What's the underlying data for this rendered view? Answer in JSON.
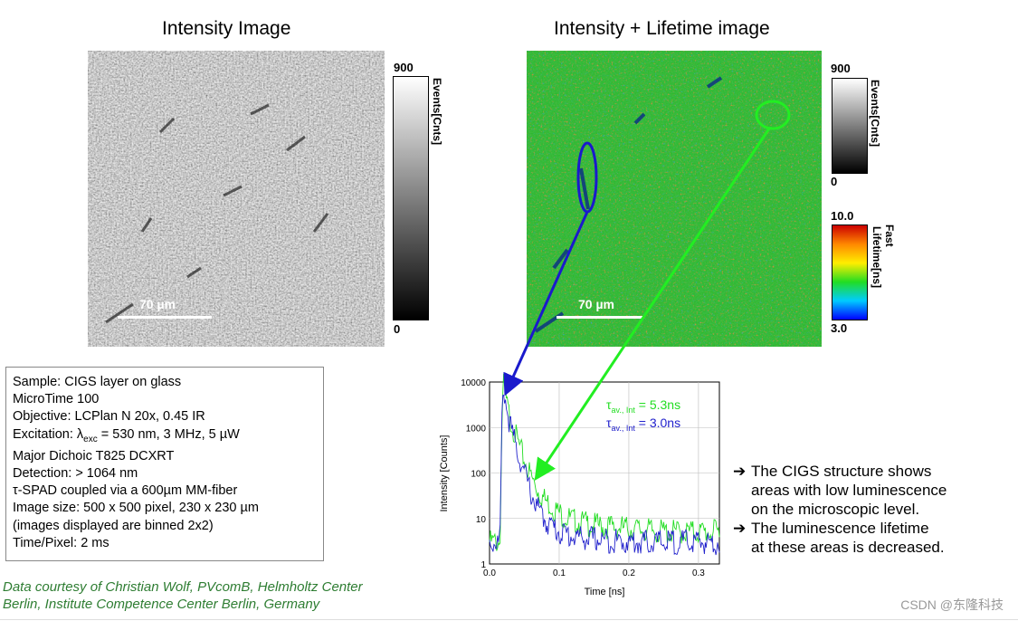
{
  "headings": {
    "left": "Intensity Image",
    "right": "Intensity + Lifetime image"
  },
  "scale_bar_label": "70 µm",
  "colorbar_intensity": {
    "max": "900",
    "min": "0",
    "title": "Events[Cnts]"
  },
  "colorbar_lifetime": {
    "max": "10.0",
    "min": "3.0",
    "title_fast": "Fast",
    "title": "Lifetime[ns]"
  },
  "info_box": {
    "sample": "Sample: CIGS layer on glass",
    "instrument": "MicroTime 100",
    "objective": "Objective: LCPlan N 20x, 0.45 IR",
    "excitation_prefix": "Excitation: λ",
    "excitation_sub": "exc",
    "excitation_suffix": " = 530 nm, 3 MHz, 5 µW",
    "dichroic": "Major Dichoic T825 DCXRT",
    "detection": "Detection: > 1064 nm",
    "spad": "τ-SPAD coupled via a 600µm MM-fiber",
    "image_size": "Image size: 500 x 500 pixel, 230 x 230 µm",
    "binning": "(images displayed are binned 2x2)",
    "time_pixel": "Time/Pixel: 2 ms"
  },
  "credit": {
    "line1": "Data courtesy of Christian Wolf, PVcomB, Helmholtz Center",
    "line2": "Berlin, Institute Competence Center Berlin, Germany"
  },
  "conclusions": {
    "arrow": "➔",
    "item1_line1": "The CIGS structure shows",
    "item1_line2": "areas with low luminescence",
    "item1_line3": "on the microscopic level.",
    "item2_line1": "The luminescence lifetime",
    "item2_line2": "at these areas is decreased."
  },
  "chart_data": {
    "type": "line",
    "xlabel": "Time [ns]",
    "ylabel": "Intensity [Counts]",
    "xlim": [
      0,
      0.33
    ],
    "ylim": [
      1,
      10000
    ],
    "y_scale": "log",
    "x_ticks": [
      "0.0",
      "0.1",
      "0.2",
      "0.3"
    ],
    "x_tick_values": [
      0,
      0.1,
      0.2,
      0.3
    ],
    "y_ticks": [
      "1",
      "10",
      "100",
      "1000",
      "10000"
    ],
    "y_tick_values": [
      1,
      10,
      100,
      1000,
      10000
    ],
    "series": [
      {
        "color": "#22dd22",
        "x": [
          0.015,
          0.018,
          0.02,
          0.025,
          0.03,
          0.04,
          0.05,
          0.06,
          0.07,
          0.08,
          0.1,
          0.12,
          0.15,
          0.2,
          0.25,
          0.3,
          0.33
        ],
        "y": [
          3,
          2000,
          9000,
          3000,
          1500,
          500,
          190,
          80,
          40,
          25,
          13,
          9,
          7,
          6,
          5,
          5,
          5
        ]
      },
      {
        "color": "#2222cc",
        "x": [
          0.015,
          0.018,
          0.02,
          0.025,
          0.03,
          0.04,
          0.05,
          0.06,
          0.07,
          0.08,
          0.1,
          0.12,
          0.15,
          0.2,
          0.25,
          0.3,
          0.33
        ],
        "y": [
          3,
          2000,
          8000,
          2500,
          1000,
          300,
          100,
          35,
          16,
          9,
          5,
          4,
          3.5,
          3,
          3,
          3,
          3
        ]
      }
    ],
    "annotations": [
      {
        "color": "#22dd22",
        "tau": "τ",
        "sub": "av., Int",
        "value": " = 5.3ns"
      },
      {
        "color": "#2222cc",
        "tau": "τ",
        "sub": "av., Int",
        "value": " = 3.0ns"
      }
    ]
  }
}
